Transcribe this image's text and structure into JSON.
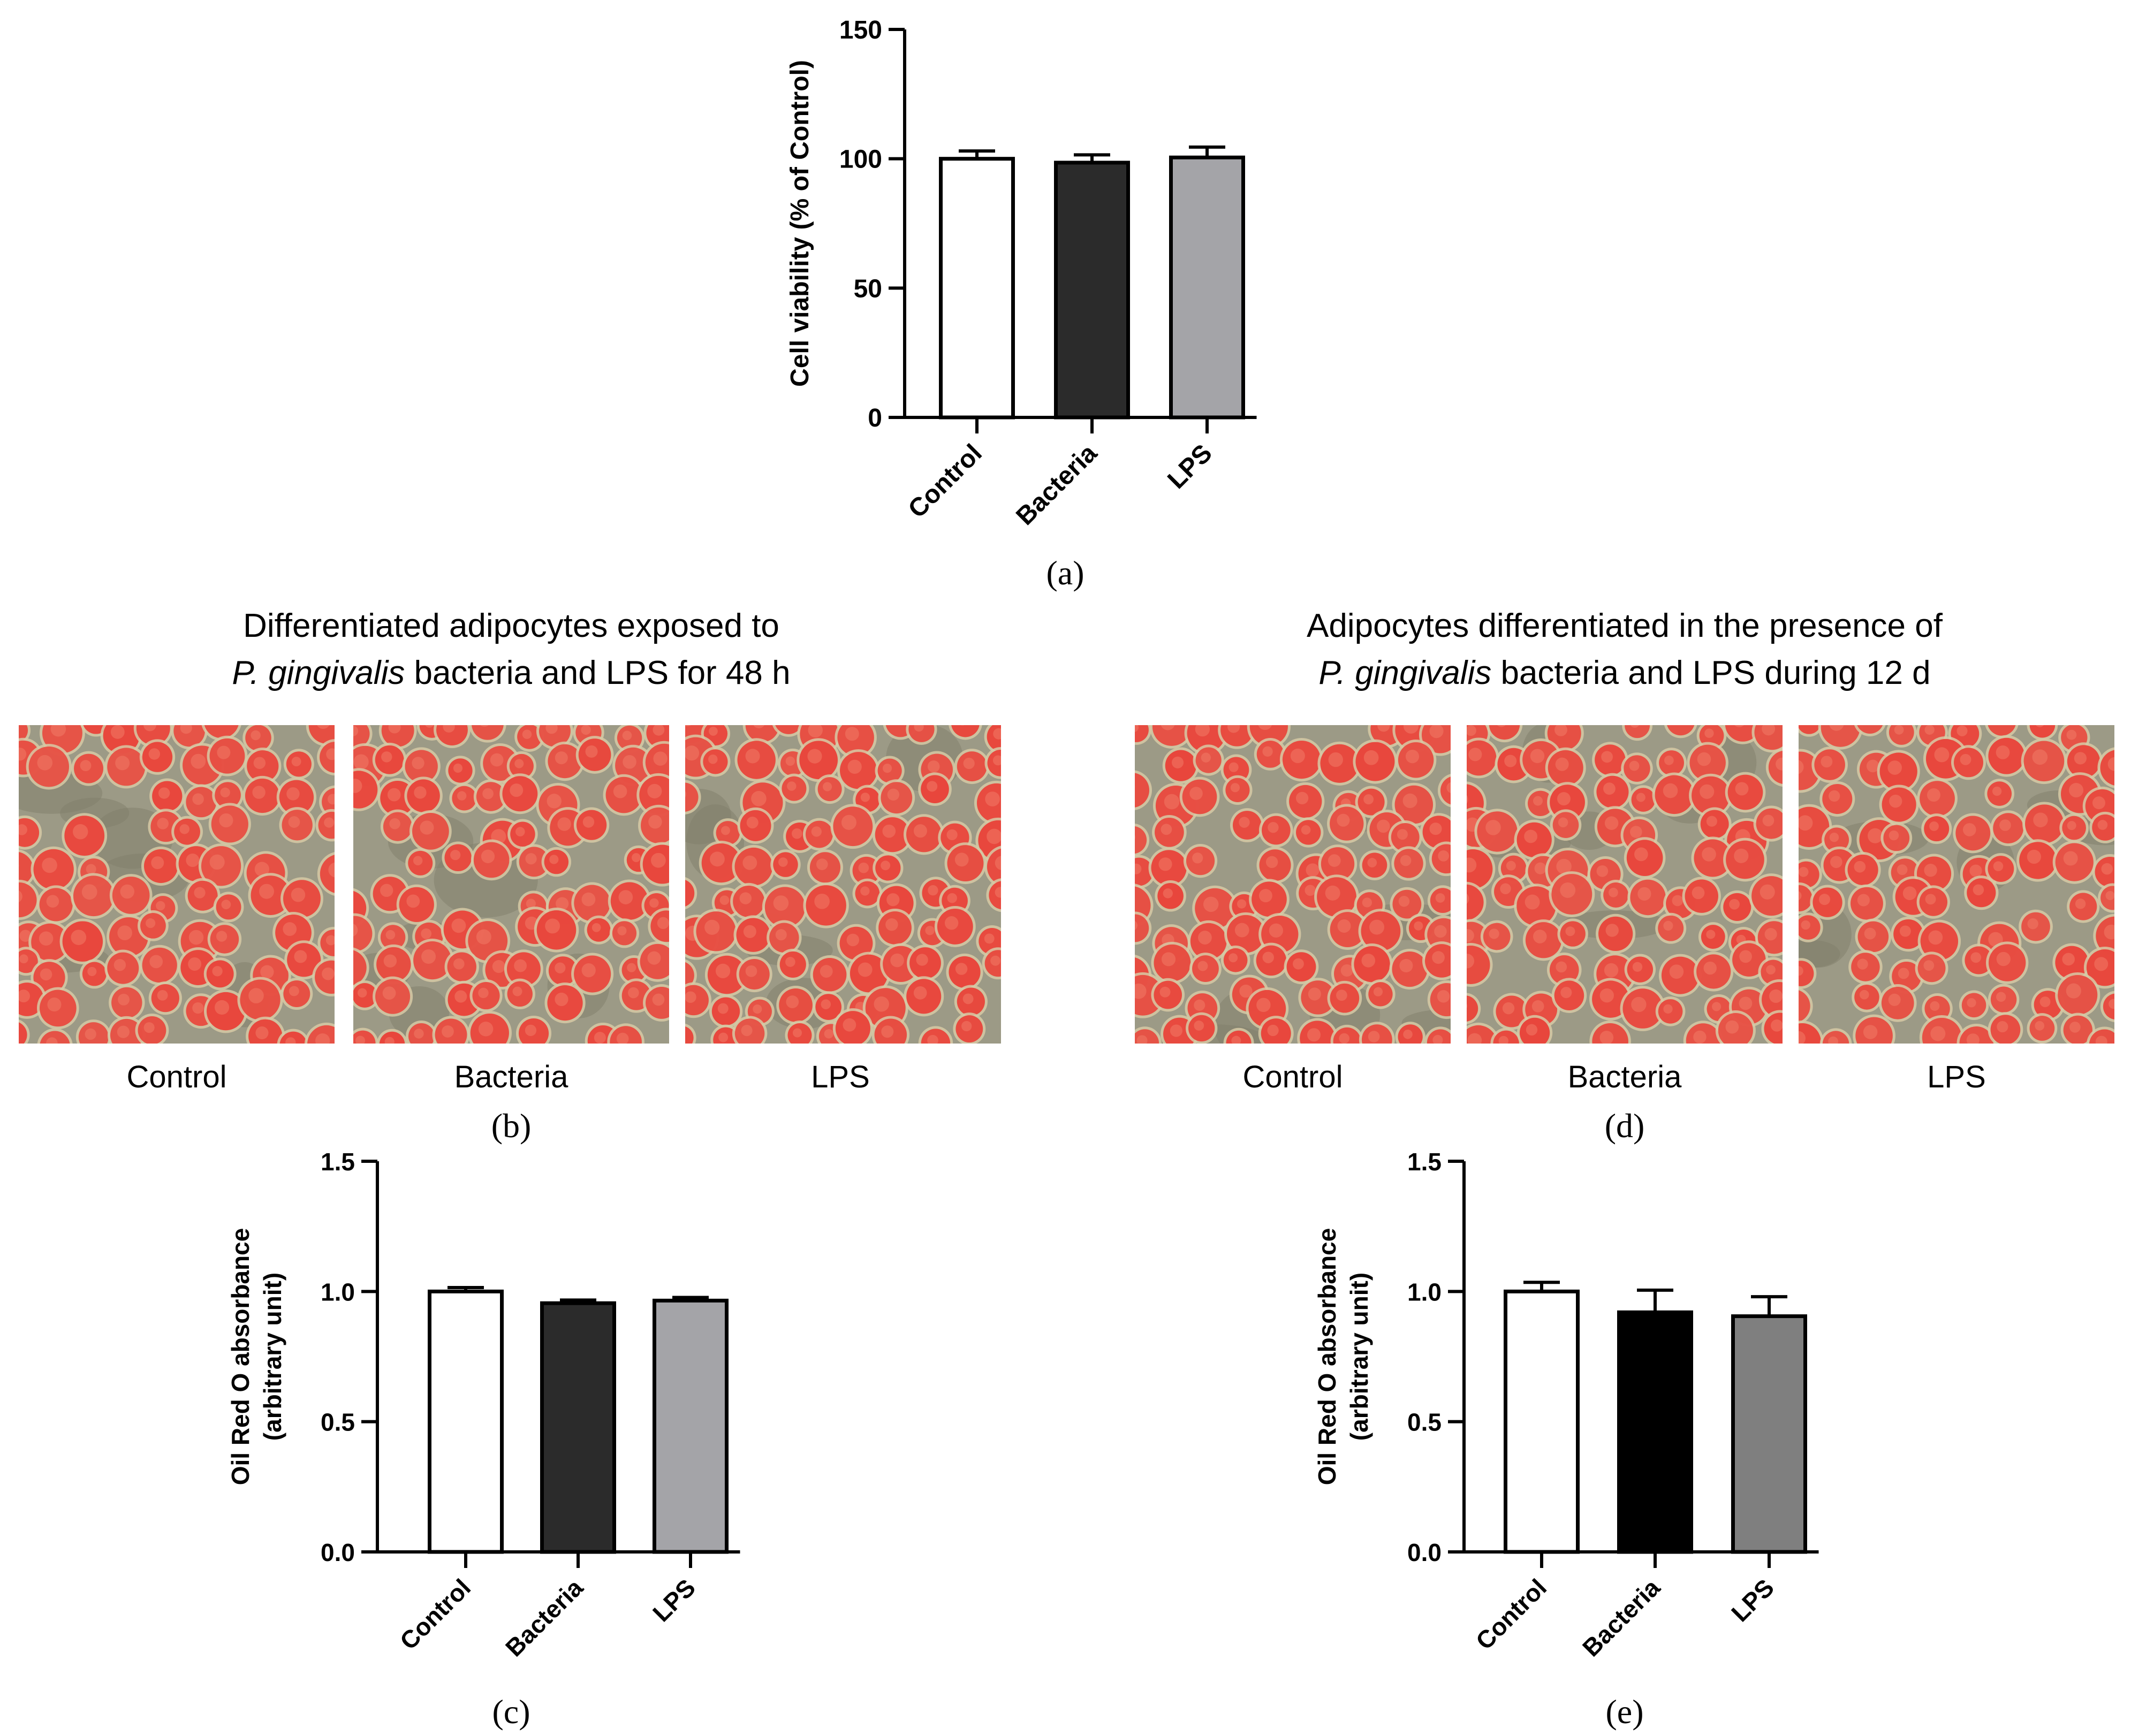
{
  "panels": {
    "a": {
      "label": "(a)"
    },
    "b": {
      "label": "(b)",
      "title_line1": "Differentiated adipocytes exposed to",
      "title_line2_italic": "P. gingivalis",
      "title_line2_rest": " bacteria and LPS for 48 h",
      "captions": [
        "Control",
        "Bacteria",
        "LPS"
      ]
    },
    "c": {
      "label": "(c)"
    },
    "d": {
      "label": "(d)",
      "title_line1": "Adipocytes differentiated in the presence of",
      "title_line2_italic": "P. gingivalis",
      "title_line2_rest": " bacteria and LPS during 12 d",
      "captions": [
        "Control",
        "Bacteria",
        "LPS"
      ]
    },
    "e": {
      "label": "(e)"
    }
  },
  "colors": {
    "control": "#ffffff",
    "bacteria_dark": "#2b2b2b",
    "lps_grey": "#a4a4a8",
    "bacteria_black": "#000000",
    "lps_mid": "#7f7f7f",
    "micro_bg": "#9c9a86",
    "droplet_red": "#e8463c"
  },
  "chart_data": [
    {
      "id": "a",
      "type": "bar",
      "categories": [
        "Control",
        "Bacteria",
        "LPS"
      ],
      "values": [
        100,
        98.5,
        100.5
      ],
      "errors": [
        3,
        3,
        4
      ],
      "ylabel": "Cell viability (% of Control)",
      "ylim": [
        0,
        150
      ],
      "yticks": [
        0,
        50,
        100,
        150
      ],
      "ytick_labels": [
        "0",
        "50",
        "100",
        "150"
      ],
      "colors": [
        "#ffffff",
        "#2b2b2b",
        "#a4a4a8"
      ]
    },
    {
      "id": "c",
      "type": "bar",
      "categories": [
        "Control",
        "Bacteria",
        "LPS"
      ],
      "values": [
        1.0,
        0.955,
        0.965
      ],
      "errors": [
        0.015,
        0.012,
        0.012
      ],
      "ylabel_line1": "Oil Red O absorbance",
      "ylabel_line2": "(arbitrary unit)",
      "ylim": [
        0,
        1.5
      ],
      "yticks": [
        0,
        0.5,
        1.0,
        1.5
      ],
      "ytick_labels": [
        "0.0",
        "0.5",
        "1.0",
        "1.5"
      ],
      "colors": [
        "#ffffff",
        "#2b2b2b",
        "#a4a4a8"
      ]
    },
    {
      "id": "e",
      "type": "bar",
      "categories": [
        "Control",
        "Bacteria",
        "LPS"
      ],
      "values": [
        1.0,
        0.92,
        0.905
      ],
      "errors": [
        0.035,
        0.085,
        0.075
      ],
      "ylabel_line1": "Oil Red O absorbance",
      "ylabel_line2": "(arbitrary unit)",
      "ylim": [
        0,
        1.5
      ],
      "yticks": [
        0,
        0.5,
        1.0,
        1.5
      ],
      "ytick_labels": [
        "0.0",
        "0.5",
        "1.0",
        "1.5"
      ],
      "colors": [
        "#ffffff",
        "#000000",
        "#7f7f7f"
      ]
    }
  ]
}
